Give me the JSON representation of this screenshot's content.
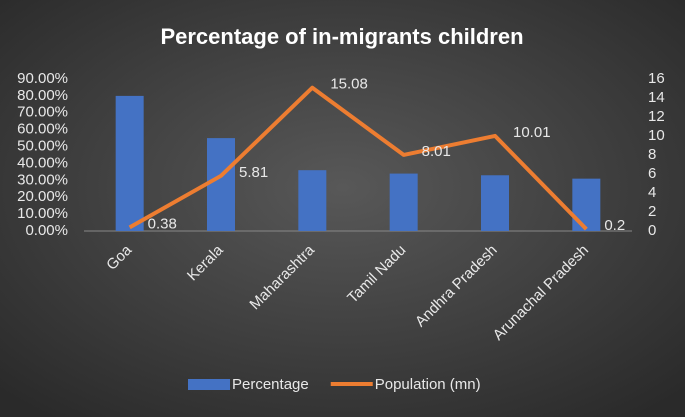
{
  "chart_data": {
    "type": "combo",
    "title": "Percentage of in-migrants children",
    "categories": [
      "Goa",
      "Kerala",
      "Maharashtra",
      "Tamil Nadu",
      "Andhra Pradesh",
      "Arunachal Pradesh"
    ],
    "series": [
      {
        "name": "Percentage",
        "type": "bar",
        "color": "#4472c4",
        "values": [
          80,
          55,
          36,
          34,
          33,
          31
        ]
      },
      {
        "name": "Population (mn)",
        "type": "line",
        "axis": "y2",
        "color": "#ed7d31",
        "values": [
          0.38,
          5.81,
          15.08,
          8.01,
          10.01,
          0.2
        ]
      }
    ],
    "ylim": [
      0,
      90
    ],
    "yticks": [
      {
        "value": 0,
        "label": "0.00%"
      },
      {
        "value": 10,
        "label": "10.00%"
      },
      {
        "value": 20,
        "label": "20.00%"
      },
      {
        "value": 30,
        "label": "30.00%"
      },
      {
        "value": 40,
        "label": "40.00%"
      },
      {
        "value": 50,
        "label": "50.00%"
      },
      {
        "value": 60,
        "label": "60.00%"
      },
      {
        "value": 70,
        "label": "70.00%"
      },
      {
        "value": 80,
        "label": "80.00%"
      },
      {
        "value": 90,
        "label": "90.00%"
      }
    ],
    "y2lim": [
      0,
      16
    ],
    "y2ticks": [
      0,
      2,
      4,
      6,
      8,
      10,
      12,
      14,
      16
    ],
    "legend": "bottom"
  }
}
